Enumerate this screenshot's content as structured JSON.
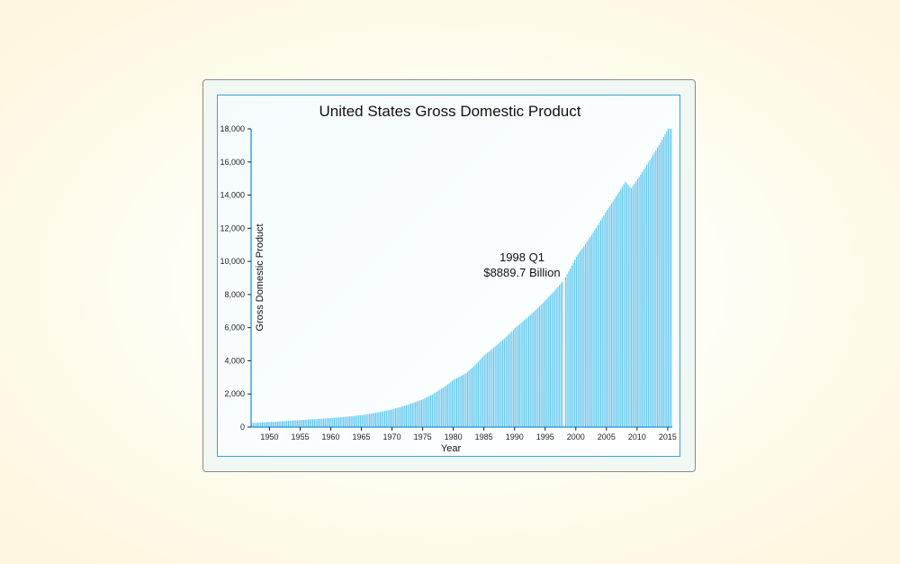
{
  "chart_data": {
    "type": "bar",
    "title": "United States Gross Domestic Product",
    "xlabel": "Year",
    "ylabel": "Gross Domestic Product",
    "ylim": [
      0,
      18000
    ],
    "y_ticks": [
      "0",
      "2,000",
      "4,000",
      "6,000",
      "8,000",
      "10,000",
      "12,000",
      "14,000",
      "16,000",
      "18,000"
    ],
    "x_ticks": [
      "1950",
      "1955",
      "1960",
      "1965",
      "1970",
      "1975",
      "1980",
      "1985",
      "1990",
      "1995",
      "2000",
      "2005",
      "2010",
      "2015"
    ],
    "x_range": [
      "1947 Q1",
      "2015 Q3"
    ],
    "grid": false,
    "bar_color": "#5ec6f0",
    "highlight_color": "#ffffff",
    "series": [
      {
        "name": "GDP",
        "annual_values": [
          {
            "year": 1947,
            "value": 243
          },
          {
            "year": 1950,
            "value": 300
          },
          {
            "year": 1955,
            "value": 426
          },
          {
            "year": 1960,
            "value": 543
          },
          {
            "year": 1965,
            "value": 720
          },
          {
            "year": 1970,
            "value": 1075
          },
          {
            "year": 1975,
            "value": 1685
          },
          {
            "year": 1980,
            "value": 2862
          },
          {
            "year": 1982,
            "value": 3253
          },
          {
            "year": 1985,
            "value": 4339
          },
          {
            "year": 1990,
            "value": 5980
          },
          {
            "year": 1995,
            "value": 7664
          },
          {
            "year": 1998,
            "value": 8890
          },
          {
            "year": 2000,
            "value": 10285
          },
          {
            "year": 2005,
            "value": 13094
          },
          {
            "year": 2008,
            "value": 14800
          },
          {
            "year": 2009,
            "value": 14420
          },
          {
            "year": 2010,
            "value": 14964
          },
          {
            "year": 2015,
            "value": 18000
          }
        ]
      }
    ],
    "annotation": {
      "line1": "1998 Q1",
      "line2": "$8889.7 Billion",
      "period": "1998 Q1",
      "value": 8889.7
    }
  }
}
